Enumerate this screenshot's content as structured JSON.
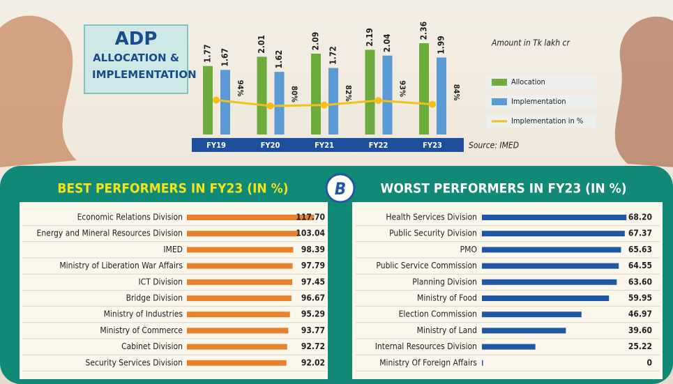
{
  "logo": "B",
  "chart_data": [
    {
      "type": "bar",
      "title": "ADP",
      "subtitle": "ALLOCATION & IMPLEMENTATION",
      "annotations": [
        "Amount in Tk lakh cr",
        "Source: IMED"
      ],
      "categories": [
        "FY19",
        "FY20",
        "FY21",
        "FY22",
        "FY23"
      ],
      "series": [
        {
          "name": "Allocation",
          "type": "bar",
          "color": "#6dab3c",
          "values": [
            1.77,
            2.01,
            2.09,
            2.19,
            2.36
          ]
        },
        {
          "name": "Implementation",
          "type": "bar",
          "color": "#5b9bd5",
          "values": [
            1.67,
            1.62,
            1.72,
            2.04,
            1.99
          ]
        },
        {
          "name": "Implementation in %",
          "type": "line",
          "color": "#f2c019",
          "values": [
            94,
            80,
            82,
            93,
            84
          ],
          "value_labels": [
            "94%",
            "80%",
            "82%",
            "93%",
            "84%"
          ]
        }
      ]
    },
    {
      "type": "hbar",
      "title": "BEST PERFORMERS IN FY23 (IN %)",
      "color": "#e8812a",
      "categories": [
        "Economic Relations Division",
        "Energy and Mineral Resources Division",
        "IMED",
        "Ministry of Liberation War Affairs",
        "ICT Division",
        "Bridge Division",
        "Ministry of Industries",
        "Ministry of Commerce",
        "Cabinet Division",
        "Security Services Division"
      ],
      "values": [
        117.7,
        103.04,
        98.39,
        97.79,
        97.45,
        96.67,
        95.29,
        93.77,
        92.72,
        92.02
      ],
      "value_labels": [
        "117.70",
        "103.04",
        "98.39",
        "97.79",
        "97.45",
        "96.67",
        "95.29",
        "93.77",
        "92.72",
        "92.02"
      ]
    },
    {
      "type": "hbar",
      "title": "WORST PERFORMERS IN FY23 (IN %)",
      "color": "#1f56a5",
      "categories": [
        "Health Services Division",
        "Public Security Division",
        "PMO",
        "Public Service Commission",
        "Planning Division",
        "Ministry of Food",
        "Election Commission",
        "Ministry of Land",
        "Internal Resources Division",
        "Ministry Of Foreign Affairs"
      ],
      "values": [
        68.2,
        67.37,
        65.63,
        64.55,
        63.6,
        59.95,
        46.97,
        39.6,
        25.22,
        0
      ],
      "value_labels": [
        "68.20",
        "67.37",
        "65.63",
        "64.55",
        "63.60",
        "59.95",
        "46.97",
        "39.60",
        "25.22",
        "0"
      ]
    }
  ]
}
